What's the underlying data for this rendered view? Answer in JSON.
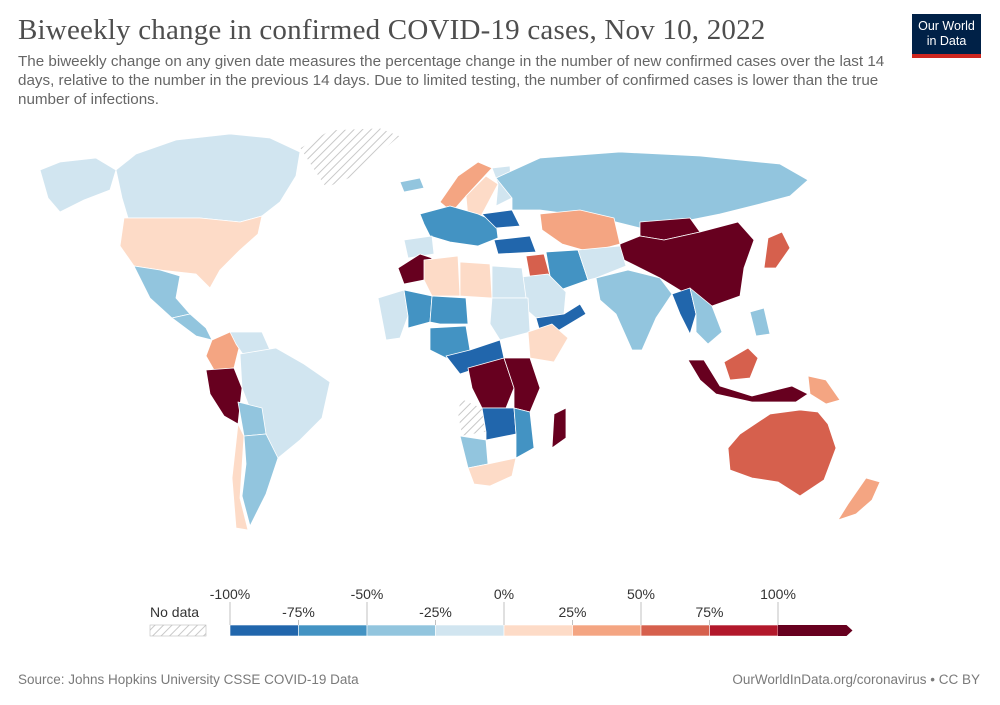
{
  "header": {
    "title": "Biweekly change in confirmed COVID-19 cases, Nov 10, 2022",
    "subtitle": "The biweekly change on any given date measures the percentage change in the number of new confirmed cases over the last 14 days, relative to the number in the previous 14 days. Due to limited testing, the number of confirmed cases is lower than the true number of infections.",
    "logo_line1": "Our World",
    "logo_line2": "in Data"
  },
  "legend": {
    "no_data_label": "No data",
    "bins": [
      {
        "color": "#2166ac"
      },
      {
        "color": "#4393c3"
      },
      {
        "color": "#92c5de"
      },
      {
        "color": "#d1e5f0"
      },
      {
        "color": "#fddbc7"
      },
      {
        "color": "#f4a582"
      },
      {
        "color": "#d6604d"
      },
      {
        "color": "#b2182b"
      },
      {
        "color": "#67001f"
      }
    ],
    "ticks_top": [
      "-100%",
      "-50%",
      "0%",
      "50%",
      "100%"
    ],
    "ticks_bottom": [
      "-75%",
      "-25%",
      "25%",
      "75%"
    ]
  },
  "colors": {
    "ocean": "#ffffff",
    "border": "#ffffff",
    "no_data_hatch": "#cfcfcf"
  },
  "regions": [
    {
      "name": "Alaska",
      "color": "#d1e5f0"
    },
    {
      "name": "Canada",
      "color": "#d1e5f0"
    },
    {
      "name": "Greenland",
      "color": "no-data"
    },
    {
      "name": "United States",
      "color": "#fddbc7"
    },
    {
      "name": "Mexico",
      "color": "#92c5de"
    },
    {
      "name": "Central America",
      "color": "#92c5de"
    },
    {
      "name": "Colombia",
      "color": "#f4a582"
    },
    {
      "name": "Venezuela",
      "color": "#d1e5f0"
    },
    {
      "name": "Brazil",
      "color": "#d1e5f0"
    },
    {
      "name": "Peru",
      "color": "#67001f"
    },
    {
      "name": "Bolivia",
      "color": "#92c5de"
    },
    {
      "name": "Chile",
      "color": "#fddbc7"
    },
    {
      "name": "Argentina",
      "color": "#92c5de"
    },
    {
      "name": "Iceland",
      "color": "#92c5de"
    },
    {
      "name": "Norway",
      "color": "#f4a582"
    },
    {
      "name": "Sweden",
      "color": "#fddbc7"
    },
    {
      "name": "Finland",
      "color": "#d1e5f0"
    },
    {
      "name": "Western Europe",
      "color": "#4393c3"
    },
    {
      "name": "Spain",
      "color": "#d1e5f0"
    },
    {
      "name": "Ukraine",
      "color": "#2166ac"
    },
    {
      "name": "Russia",
      "color": "#92c5de"
    },
    {
      "name": "Kazakhstan",
      "color": "#f4a582"
    },
    {
      "name": "China",
      "color": "#67001f"
    },
    {
      "name": "Mongolia",
      "color": "#67001f"
    },
    {
      "name": "Japan",
      "color": "#d6604d"
    },
    {
      "name": "Turkey",
      "color": "#2166ac"
    },
    {
      "name": "Iraq",
      "color": "#d6604d"
    },
    {
      "name": "Iran",
      "color": "#4393c3"
    },
    {
      "name": "Saudi Arabia",
      "color": "#d1e5f0"
    },
    {
      "name": "Yemen",
      "color": "#2166ac"
    },
    {
      "name": "Central Asia",
      "color": "#d1e5f0"
    },
    {
      "name": "India",
      "color": "#92c5de"
    },
    {
      "name": "Myanmar",
      "color": "#2166ac"
    },
    {
      "name": "Southeast Asia",
      "color": "#92c5de"
    },
    {
      "name": "Indonesia",
      "color": "#67001f"
    },
    {
      "name": "Borneo",
      "color": "#d6604d"
    },
    {
      "name": "Philippines",
      "color": "#92c5de"
    },
    {
      "name": "Papua New Guinea",
      "color": "#f4a582"
    },
    {
      "name": "Australia",
      "color": "#d6604d"
    },
    {
      "name": "New Zealand",
      "color": "#f4a582"
    },
    {
      "name": "Morocco",
      "color": "#67001f"
    },
    {
      "name": "Algeria",
      "color": "#fddbc7"
    },
    {
      "name": "Libya",
      "color": "#fddbc7"
    },
    {
      "name": "Egypt",
      "color": "#d1e5f0"
    },
    {
      "name": "Mali",
      "color": "#4393c3"
    },
    {
      "name": "Niger",
      "color": "#4393c3"
    },
    {
      "name": "Sudan",
      "color": "#d1e5f0"
    },
    {
      "name": "Ethiopia",
      "color": "#fddbc7"
    },
    {
      "name": "Nigeria",
      "color": "#4393c3"
    },
    {
      "name": "Central Africa",
      "color": "#2166ac"
    },
    {
      "name": "DR Congo",
      "color": "#67001f"
    },
    {
      "name": "East Africa",
      "color": "#67001f"
    },
    {
      "name": "Angola",
      "color": "no-data"
    },
    {
      "name": "Zambia",
      "color": "#2166ac"
    },
    {
      "name": "Mozambique",
      "color": "#4393c3"
    },
    {
      "name": "Namibia",
      "color": "#92c5de"
    },
    {
      "name": "South Africa",
      "color": "#fddbc7"
    },
    {
      "name": "Madagascar",
      "color": "#67001f"
    },
    {
      "name": "West Africa",
      "color": "#d1e5f0"
    }
  ],
  "footer": {
    "source": "Source: Johns Hopkins University CSSE COVID-19 Data",
    "credit": "OurWorldInData.org/coronavirus • CC BY"
  }
}
